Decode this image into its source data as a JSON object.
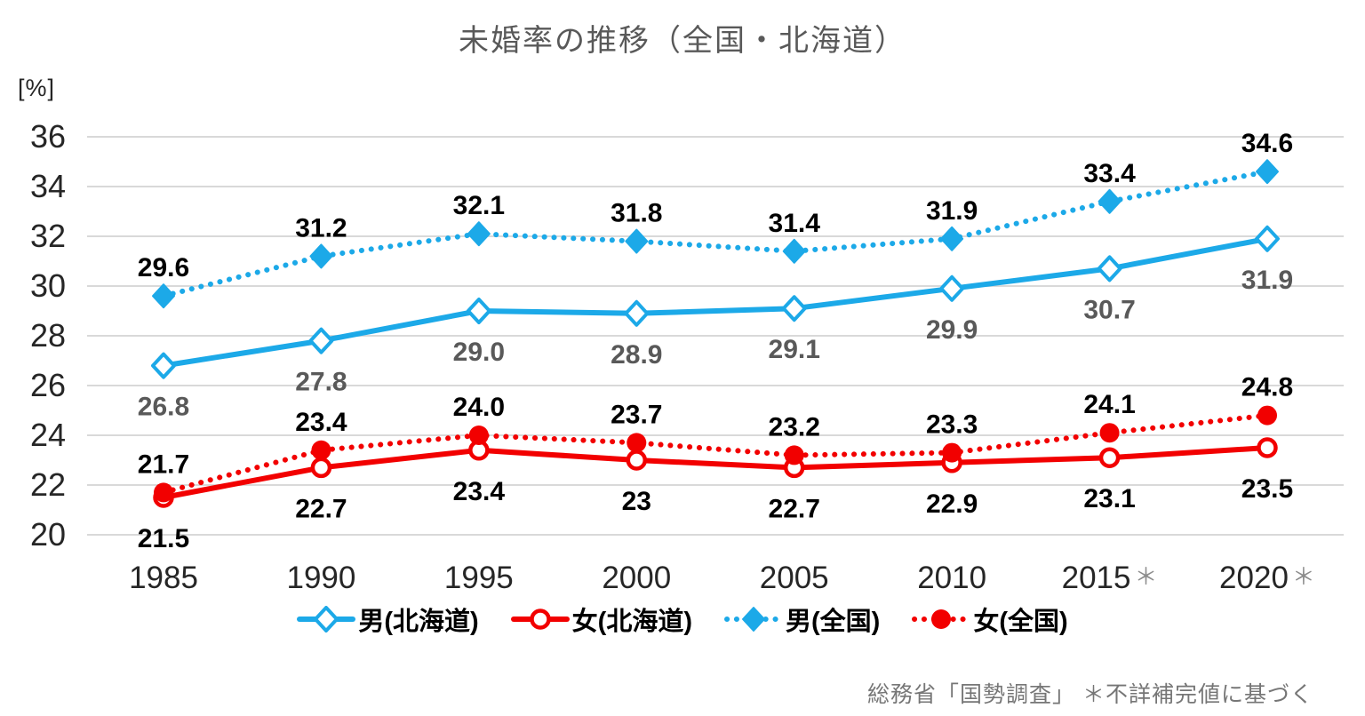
{
  "title": "未婚率の推移（全国・北海道）",
  "unit_label": "[%]",
  "source_note": "総務省「国勢調査」 ＊不詳補完値に基づく",
  "colors": {
    "blue": "#1CA9E8",
    "red": "#F20000",
    "grid": "#D9D9D9",
    "axis_text": "#262626",
    "black_label": "#000000",
    "gray_label": "#595959",
    "title_text": "#595959",
    "source_text": "#767676",
    "note_gray": "#8C8C8C",
    "background": "#FFFFFF"
  },
  "chart_data": {
    "type": "line",
    "title": "未婚率の推移（全国・北海道）",
    "ylabel": "[%]",
    "ylim": [
      20,
      36
    ],
    "y_ticks": [
      36,
      34,
      32,
      30,
      28,
      26,
      24,
      22,
      20
    ],
    "grid": true,
    "legend_position": "bottom",
    "categories": [
      {
        "text": "1985",
        "note": ""
      },
      {
        "text": "1990",
        "note": ""
      },
      {
        "text": "1995",
        "note": ""
      },
      {
        "text": "2000",
        "note": ""
      },
      {
        "text": "2005",
        "note": ""
      },
      {
        "text": "2010",
        "note": ""
      },
      {
        "text": "2015",
        "note": "＊"
      },
      {
        "text": "2020",
        "note": "＊"
      }
    ],
    "series": [
      {
        "id": "male-hokkaido",
        "name": "男(北海道)",
        "color": "#1CA9E8",
        "line": "solid",
        "marker": "diamond-open",
        "label_color": "#595959",
        "label_position": "below",
        "values": [
          26.8,
          27.8,
          29.0,
          28.9,
          29.1,
          29.9,
          30.7,
          31.9
        ],
        "labels": [
          "26.8",
          "27.8",
          "29.0",
          "28.9",
          "29.1",
          "29.9",
          "30.7",
          "31.9"
        ]
      },
      {
        "id": "female-hokkaido",
        "name": "女(北海道)",
        "color": "#F20000",
        "line": "solid",
        "marker": "circle-open",
        "label_color": "#000000",
        "label_position": "below",
        "values": [
          21.5,
          22.7,
          23.4,
          23,
          22.7,
          22.9,
          23.1,
          23.5
        ],
        "labels": [
          "21.5",
          "22.7",
          "23.4",
          "23",
          "22.7",
          "22.9",
          "23.1",
          "23.5"
        ]
      },
      {
        "id": "male-national",
        "name": "男(全国)",
        "color": "#1CA9E8",
        "line": "dotted",
        "marker": "diamond-filled",
        "label_color": "#000000",
        "label_position": "above",
        "values": [
          29.6,
          31.2,
          32.1,
          31.8,
          31.4,
          31.9,
          33.4,
          34.6
        ],
        "labels": [
          "29.6",
          "31.2",
          "32.1",
          "31.8",
          "31.4",
          "31.9",
          "33.4",
          "34.6"
        ]
      },
      {
        "id": "female-national",
        "name": "女(全国)",
        "color": "#F20000",
        "line": "dotted",
        "marker": "circle-filled",
        "label_color": "#000000",
        "label_position": "above",
        "values": [
          21.7,
          23.4,
          24.0,
          23.7,
          23.2,
          23.3,
          24.1,
          24.8
        ],
        "labels": [
          "21.7",
          "23.4",
          "24.0",
          "23.7",
          "23.2",
          "23.3",
          "24.1",
          "24.8"
        ]
      }
    ]
  }
}
